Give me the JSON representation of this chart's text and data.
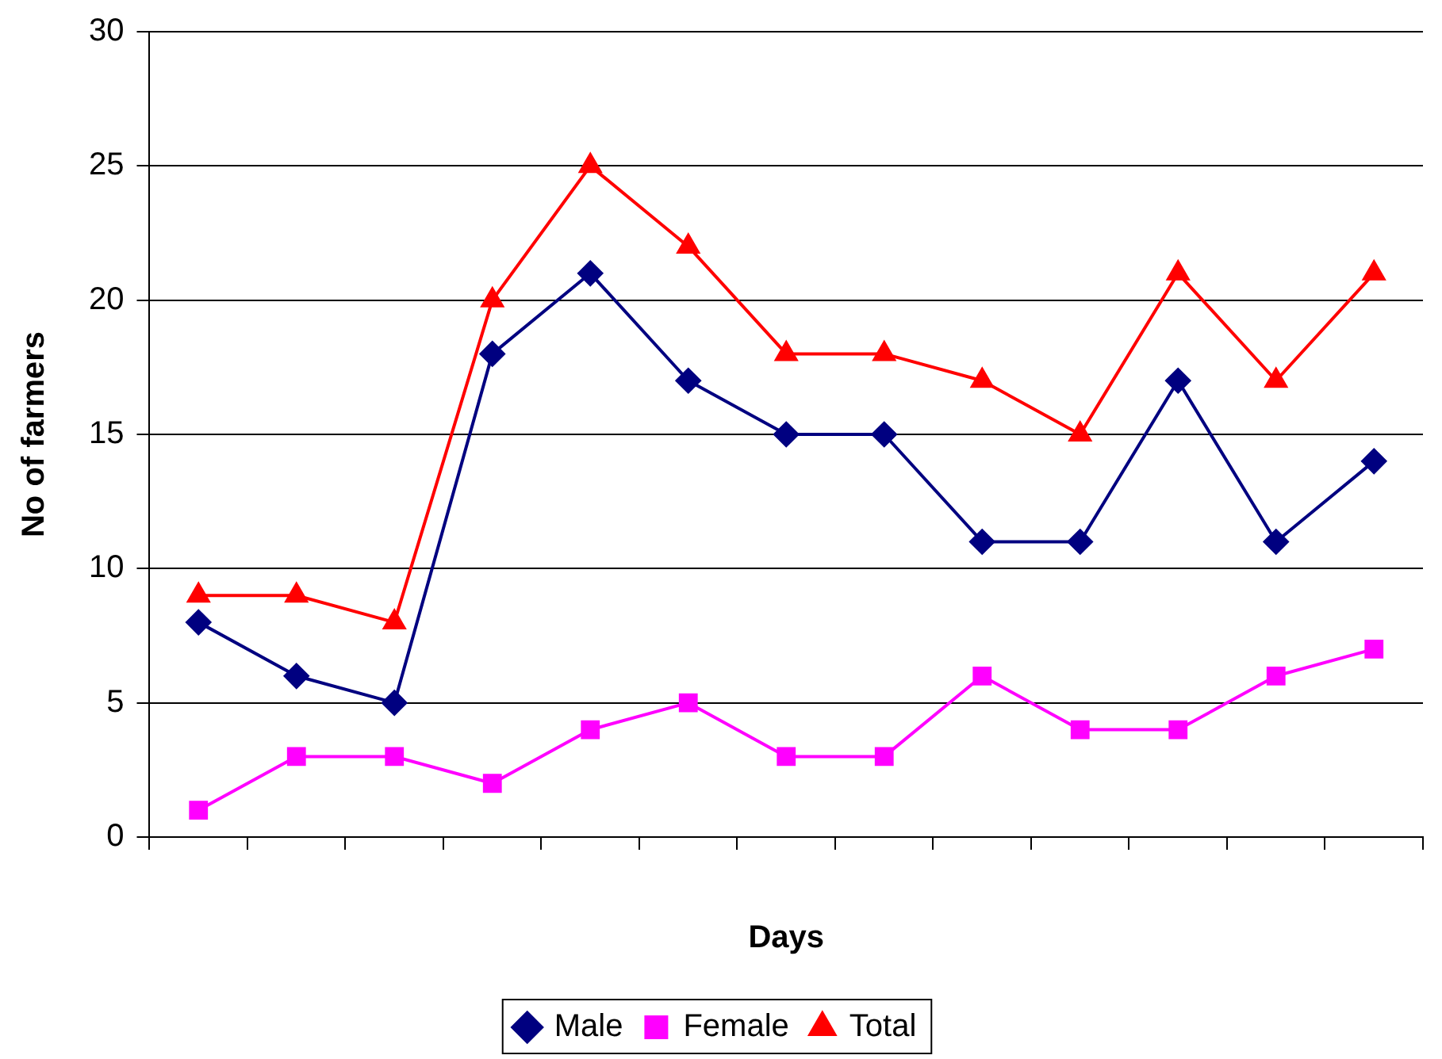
{
  "chart_data": {
    "type": "line",
    "xlabel": "Days",
    "ylabel": "No of farmers",
    "categories": [
      null,
      null,
      null,
      null,
      null,
      null,
      null,
      null,
      null,
      null,
      null,
      null,
      null
    ],
    "series": [
      {
        "name": "Male",
        "color": "#000080",
        "marker": "diamond",
        "values": [
          8,
          6,
          5,
          18,
          21,
          17,
          15,
          15,
          11,
          11,
          17,
          11,
          14
        ]
      },
      {
        "name": "Female",
        "color": "#ff00ff",
        "marker": "square",
        "values": [
          1,
          3,
          3,
          2,
          4,
          5,
          3,
          3,
          6,
          4,
          4,
          6,
          7
        ]
      },
      {
        "name": "Total",
        "color": "#ff0000",
        "marker": "triangle",
        "values": [
          9,
          9,
          8,
          20,
          25,
          22,
          18,
          18,
          17,
          15,
          21,
          17,
          21
        ]
      }
    ],
    "ylim": [
      0,
      30
    ],
    "yticks": [
      0,
      5,
      10,
      15,
      20,
      25,
      30
    ],
    "grid": "y",
    "legend": "bottom",
    "line_style": "solid"
  }
}
